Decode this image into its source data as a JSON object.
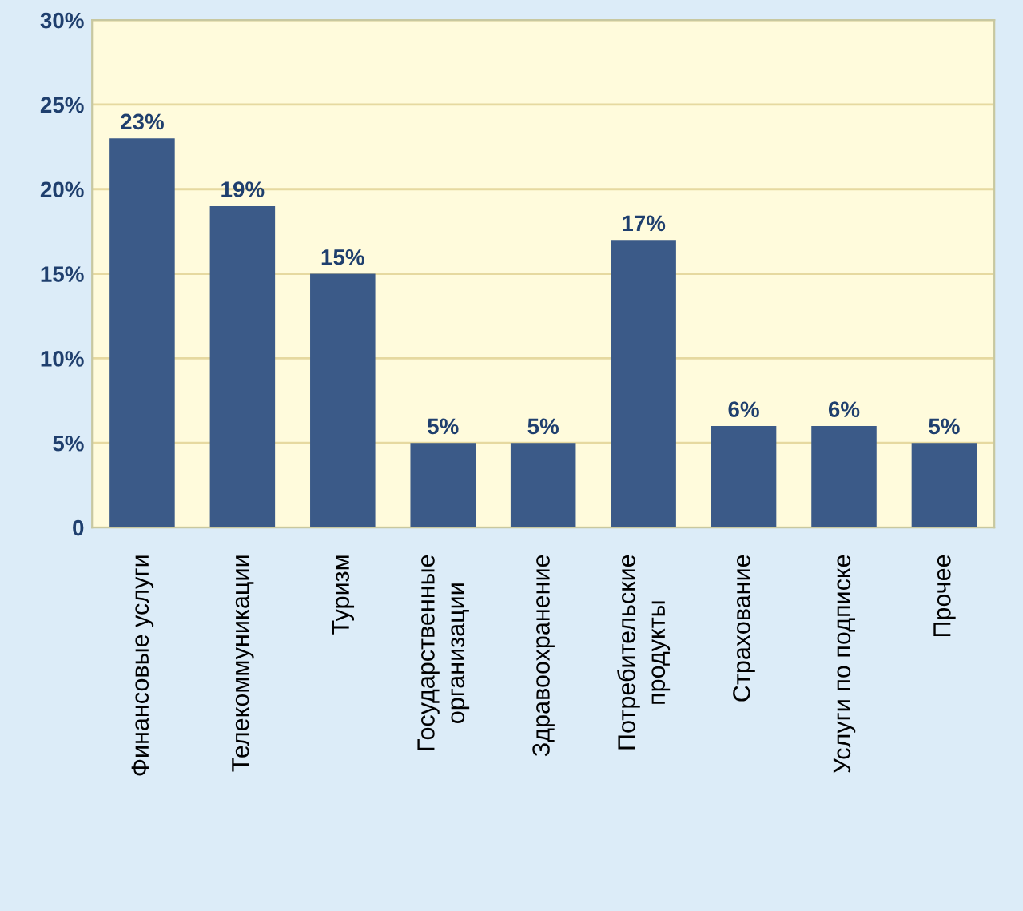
{
  "chart_data": {
    "type": "bar",
    "categories": [
      "Финансовые услуги",
      "Телекоммуникации",
      "Туризм",
      "Государственные\nорганизации",
      "Здравоохранение",
      "Потребительские\nпродукты",
      "Страхование",
      "Услуги по подписке",
      "Прочее"
    ],
    "values": [
      23,
      19,
      15,
      5,
      5,
      17,
      6,
      6,
      5
    ],
    "value_labels": [
      "23%",
      "19%",
      "15%",
      "5%",
      "5%",
      "17%",
      "6%",
      "6%",
      "5%"
    ],
    "color": "#3b5a88",
    "ylim": [
      0,
      30
    ],
    "yticks": [
      0,
      {
        "value": 5,
        "label": "5%"
      },
      {
        "value": 10,
        "label": "10%"
      },
      {
        "value": 15,
        "label": "15%"
      },
      {
        "value": 20,
        "label": "20%"
      },
      {
        "value": 25,
        "label": "25%"
      },
      {
        "value": 30,
        "label": "30%"
      }
    ],
    "grid": "y"
  }
}
